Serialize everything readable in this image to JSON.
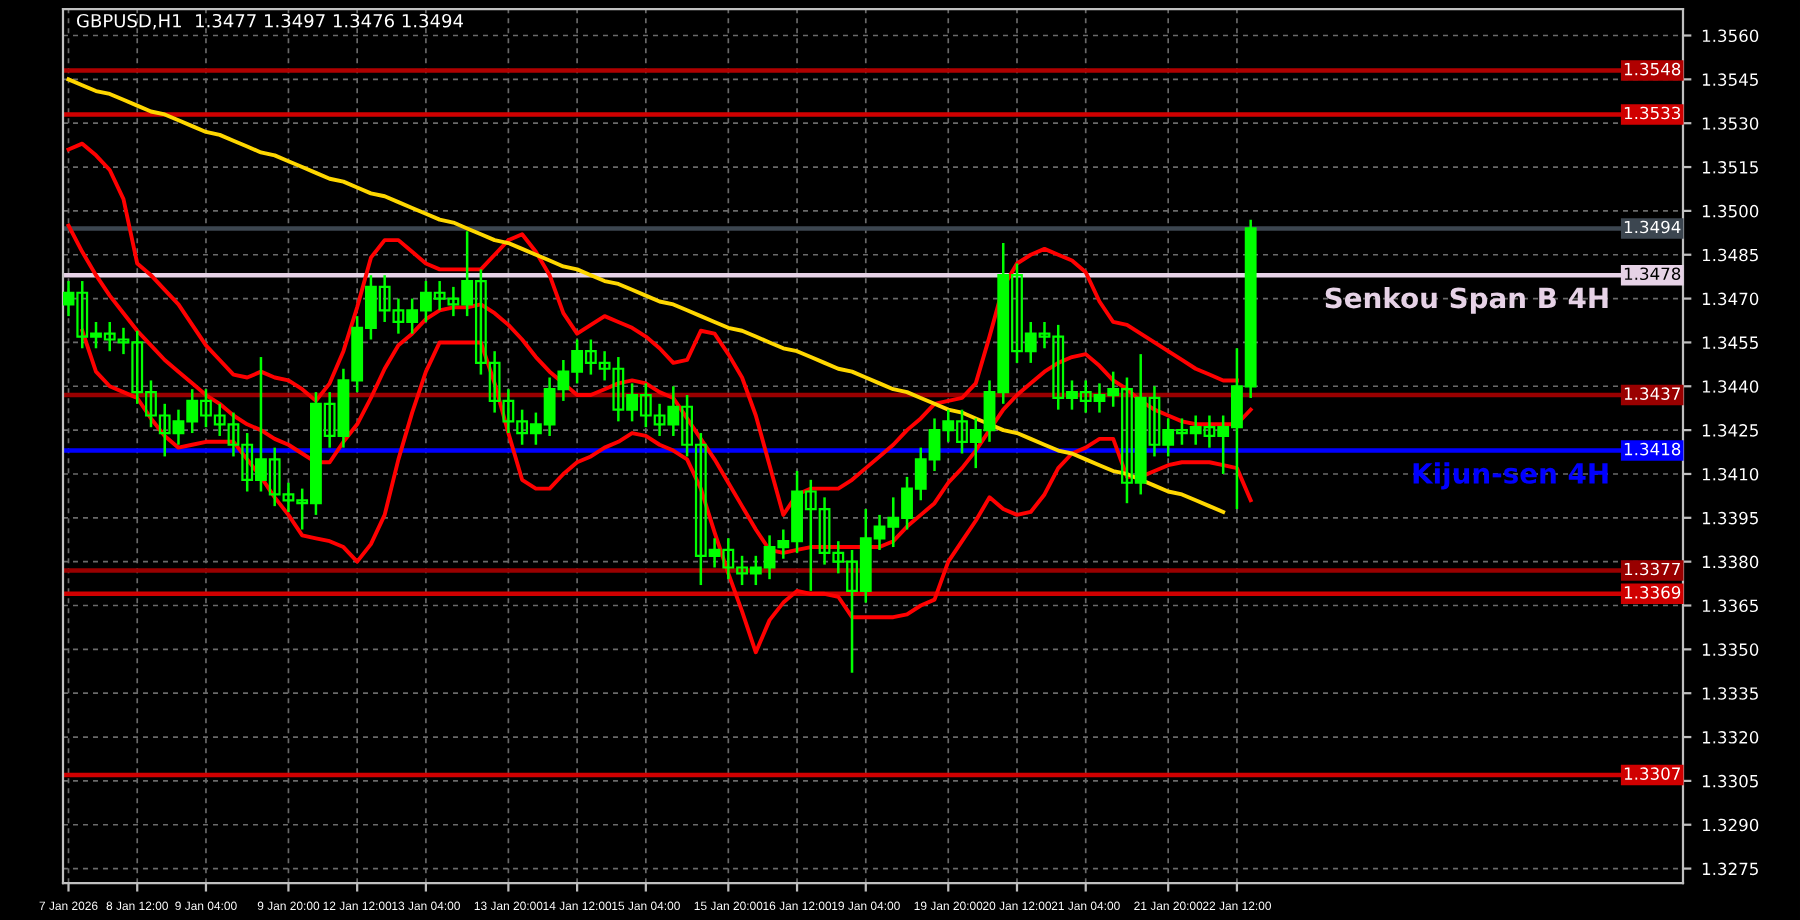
{
  "chart_data": {
    "type": "candlestick",
    "annotations": [
      "GBPUSD,H1  1.3477 1.3497 1.3476 1.3494",
      {
        "text": "1.3548",
        "y": 1.3548
      },
      {
        "text": "1.3533",
        "y": 1.3533
      },
      {
        "text": "1.3494",
        "y": 1.3494
      },
      {
        "text": "1.3478",
        "y": 1.3478
      },
      {
        "text": "1.3437",
        "y": 1.3437
      },
      {
        "text": "1.3418",
        "y": 1.3418
      },
      {
        "text": "1.3377",
        "y": 1.3377
      },
      {
        "text": "1.3369",
        "y": 1.3369
      },
      {
        "text": "1.3307",
        "y": 1.3307
      }
    ],
    "categories": [
      "7 Jan 2026",
      null,
      null,
      null,
      null,
      "8 Jan 12:00",
      null,
      null,
      null,
      null,
      "9 Jan 04:00",
      null,
      null,
      null,
      null,
      null,
      "9 Jan 20:00",
      null,
      null,
      null,
      null,
      "12 Jan 12:00",
      null,
      null,
      null,
      null,
      "13 Jan 04:00",
      null,
      null,
      null,
      null,
      null,
      "13 Jan 20:00",
      null,
      null,
      null,
      null,
      "14 Jan 12:00",
      null,
      null,
      null,
      null,
      "15 Jan 04:00",
      null,
      null,
      null,
      null,
      null,
      "15 Jan 20:00",
      null,
      null,
      null,
      null,
      "16 Jan 12:00",
      null,
      null,
      null,
      null,
      "19 Jan 04:00",
      null,
      null,
      null,
      null,
      null,
      "19 Jan 20:00",
      null,
      null,
      null,
      null,
      "20 Jan 12:00",
      null,
      null,
      null,
      null,
      "21 Jan 04:00",
      null,
      null,
      null,
      null,
      null,
      "21 Jan 20:00",
      null,
      null,
      null,
      null,
      "22 Jan 12:00",
      null
    ],
    "ylim": [
      1.327,
      1.3569
    ],
    "yticks": [
      {
        "value": 1.356,
        "label": "1.3560"
      },
      {
        "value": 1.3545,
        "label": "1.3545"
      },
      {
        "value": 1.353,
        "label": "1.3530"
      },
      {
        "value": 1.3515,
        "label": "1.3515"
      },
      {
        "value": 1.35,
        "label": "1.3500"
      },
      {
        "value": 1.3485,
        "label": "1.3485"
      },
      {
        "value": 1.347,
        "label": "1.3470"
      },
      {
        "value": 1.3455,
        "label": "1.3455"
      },
      {
        "value": 1.344,
        "label": "1.3440"
      },
      {
        "value": 1.3425,
        "label": "1.3425"
      },
      {
        "value": 1.341,
        "label": "1.3410"
      },
      {
        "value": 1.3395,
        "label": "1.3395"
      },
      {
        "value": 1.338,
        "label": "1.3380"
      },
      {
        "value": 1.3365,
        "label": "1.3365"
      },
      {
        "value": 1.335,
        "label": "1.3350"
      },
      {
        "value": 1.3335,
        "label": "1.3335"
      },
      {
        "value": 1.332,
        "label": "1.3320"
      },
      {
        "value": 1.3305,
        "label": "1.3305"
      },
      {
        "value": 1.329,
        "label": "1.3290"
      },
      {
        "value": 1.3275,
        "label": "1.3275"
      }
    ],
    "grid": true,
    "ref_lines": [
      {
        "axis": "y",
        "value": 1.3548,
        "color": "#b00000"
      },
      {
        "axis": "y",
        "value": 1.3533,
        "color": "#d00000"
      },
      {
        "axis": "y",
        "value": 1.3494,
        "color": "#3c4650"
      },
      {
        "axis": "y",
        "value": 1.3478,
        "color": "#e6d2e6",
        "label": "Senkou Span B 4H"
      },
      {
        "axis": "y",
        "value": 1.3437,
        "color": "#990000"
      },
      {
        "axis": "y",
        "value": 1.3418,
        "color": "#0000ff",
        "label": "Kijun-sen 4H"
      },
      {
        "axis": "y",
        "value": 1.3377,
        "color": "#990000"
      },
      {
        "axis": "y",
        "value": 1.3369,
        "color": "#d00000"
      },
      {
        "axis": "y",
        "value": 1.3307,
        "color": "#d00000"
      }
    ],
    "series": [
      {
        "type": "line",
        "color": "#ff0000",
        "values": [
          1.3521,
          1.3523,
          1.3519,
          1.3514,
          1.3504,
          1.3482,
          1.3478,
          1.3473,
          1.3468,
          1.3461,
          1.3454,
          1.3449,
          1.3444,
          1.3443,
          1.3445,
          1.3443,
          1.3442,
          1.3439,
          1.3435,
          1.3441,
          1.3452,
          1.3467,
          1.3484,
          1.349,
          1.349,
          1.3486,
          1.3482,
          1.348,
          1.348,
          1.348,
          1.348,
          1.3485,
          1.349,
          1.3492,
          1.3486,
          1.3478,
          1.3465,
          1.3458,
          1.3461,
          1.3464,
          1.3462,
          1.346,
          1.3457,
          1.3453,
          1.3448,
          1.3449,
          1.3459,
          1.3458,
          1.3451,
          1.3443,
          1.343,
          1.3413,
          1.3396,
          1.3403,
          1.3405,
          1.3405,
          1.3405,
          1.3408,
          1.3412,
          1.3416,
          1.342,
          1.3425,
          1.3429,
          1.3434,
          1.3435,
          1.3436,
          1.3441,
          1.3457,
          1.3474,
          1.3482,
          1.3485,
          1.3487,
          1.3485,
          1.3483,
          1.3479,
          1.3469,
          1.3462,
          1.3461,
          1.3458,
          1.3455,
          1.3452,
          1.3449,
          1.3446,
          1.3444,
          1.3442,
          1.3442,
          null
        ]
      },
      {
        "type": "line",
        "color": "#ff0000",
        "values": [
          1.3495,
          1.3486,
          1.3478,
          1.3471,
          1.3465,
          1.3459,
          1.3454,
          1.3449,
          1.3445,
          1.3441,
          1.3437,
          1.3434,
          1.343,
          1.3427,
          1.3425,
          1.3422,
          1.342,
          1.3417,
          1.3414,
          1.3414,
          1.3421,
          1.3427,
          1.3436,
          1.3446,
          1.3454,
          1.3458,
          1.3463,
          1.3466,
          1.3467,
          1.3467,
          1.3468,
          1.3465,
          1.3461,
          1.3456,
          1.345,
          1.3445,
          1.3441,
          1.3437,
          1.3437,
          1.3439,
          1.3441,
          1.3442,
          1.3441,
          1.3438,
          1.3436,
          1.3429,
          1.3422,
          1.3415,
          1.3407,
          1.3399,
          1.3391,
          1.3384,
          1.3383,
          1.3384,
          1.3385,
          1.3385,
          1.3385,
          1.3385,
          1.3385,
          1.3385,
          1.3387,
          1.3392,
          1.3396,
          1.34,
          1.3407,
          1.3412,
          1.3418,
          1.3425,
          1.3432,
          1.3437,
          1.3441,
          1.3445,
          1.3448,
          1.345,
          1.3451,
          1.3447,
          1.3442,
          1.3439,
          1.3435,
          1.3432,
          1.343,
          1.3428,
          1.3427,
          1.3427,
          1.3427,
          1.3427,
          1.3432
        ]
      },
      {
        "type": "line",
        "color": "#ff0000",
        "values": [
          null,
          1.3459,
          1.3445,
          1.344,
          1.3438,
          1.3436,
          1.3429,
          1.3423,
          1.3419,
          1.342,
          1.3421,
          1.3421,
          1.3421,
          1.3415,
          1.3409,
          1.3402,
          1.3396,
          1.3389,
          1.3388,
          1.3387,
          1.3385,
          1.338,
          1.3386,
          1.3396,
          1.3415,
          1.3431,
          1.3445,
          1.3455,
          1.3455,
          1.3455,
          1.3455,
          1.3441,
          1.3424,
          1.3408,
          1.3405,
          1.3405,
          1.341,
          1.3414,
          1.3416,
          1.3419,
          1.3421,
          1.3424,
          1.3423,
          1.342,
          1.3418,
          1.3415,
          1.3405,
          1.339,
          1.3376,
          1.3363,
          1.3349,
          1.336,
          1.3366,
          1.337,
          1.3369,
          1.3369,
          1.3368,
          1.3361,
          1.3361,
          1.3361,
          1.3361,
          1.3362,
          1.3365,
          1.3367,
          1.338,
          1.3387,
          1.3394,
          1.3402,
          1.3398,
          1.3396,
          1.3397,
          1.3403,
          1.3412,
          1.3417,
          1.3419,
          1.3422,
          1.3422,
          1.3409,
          1.3409,
          1.3411,
          1.3413,
          1.3414,
          1.3414,
          1.3414,
          1.3413,
          1.3412,
          1.3401
        ]
      },
      {
        "type": "line",
        "color": "#ffd700",
        "values": [
          1.3545,
          1.3543,
          1.3541,
          1.354,
          1.3538,
          1.3536,
          1.3534,
          1.3533,
          1.3531,
          1.3529,
          1.3527,
          1.3526,
          1.3524,
          1.3522,
          1.352,
          1.3519,
          1.3517,
          1.3515,
          1.3513,
          1.3511,
          1.351,
          1.3508,
          1.3506,
          1.3505,
          1.3503,
          1.3501,
          1.3499,
          1.3497,
          1.3496,
          1.3494,
          1.3492,
          1.349,
          1.3489,
          1.3487,
          1.3485,
          1.3483,
          1.3481,
          1.348,
          1.3478,
          1.3476,
          1.3475,
          1.3473,
          1.3471,
          1.3469,
          1.3468,
          1.3466,
          1.3464,
          1.3462,
          1.346,
          1.3459,
          1.3457,
          1.3455,
          1.3453,
          1.3452,
          1.345,
          1.3448,
          1.3446,
          1.3445,
          1.3443,
          1.3441,
          1.3439,
          1.3438,
          1.3436,
          1.3434,
          1.3432,
          1.3431,
          1.3429,
          1.3427,
          1.3425,
          1.3424,
          1.3422,
          1.342,
          1.3418,
          1.3417,
          1.3415,
          1.3413,
          1.3411,
          1.341,
          1.3408,
          1.3406,
          1.3404,
          1.3403,
          1.3401,
          1.3399,
          1.3397,
          null,
          null
        ]
      },
      {
        "color": "#00ff00",
        "ohlc": [
          [
            1.3468,
            1.3476,
            1.3464,
            1.3472
          ],
          [
            1.3472,
            1.3476,
            1.3453,
            1.3457
          ],
          [
            1.3457,
            1.3462,
            1.3453,
            1.3458
          ],
          [
            1.3458,
            1.3462,
            1.3452,
            1.3456
          ],
          [
            1.3456,
            1.346,
            1.3451,
            1.3455
          ],
          [
            1.3455,
            1.3459,
            1.3434,
            1.3438
          ],
          [
            1.3438,
            1.3442,
            1.3426,
            1.343
          ],
          [
            1.343,
            1.3434,
            1.3416,
            1.3424
          ],
          [
            1.3424,
            1.3432,
            1.342,
            1.3428
          ],
          [
            1.3428,
            1.3439,
            1.3424,
            1.3435
          ],
          [
            1.3435,
            1.3439,
            1.3426,
            1.343
          ],
          [
            1.343,
            1.3434,
            1.3423,
            1.3427
          ],
          [
            1.3427,
            1.3431,
            1.3416,
            1.342
          ],
          [
            1.342,
            1.3424,
            1.3404,
            1.3408
          ],
          [
            1.3408,
            1.345,
            1.3404,
            1.3415
          ],
          [
            1.3415,
            1.3419,
            1.3399,
            1.3403
          ],
          [
            1.3403,
            1.3407,
            1.3397,
            1.3401
          ],
          [
            1.3401,
            1.3405,
            1.3391,
            1.34
          ],
          [
            1.34,
            1.3438,
            1.3396,
            1.3434
          ],
          [
            1.3434,
            1.3438,
            1.3419,
            1.3423
          ],
          [
            1.3423,
            1.3446,
            1.3419,
            1.3442
          ],
          [
            1.3442,
            1.3464,
            1.3438,
            1.346
          ],
          [
            1.346,
            1.3478,
            1.3456,
            1.3474
          ],
          [
            1.3474,
            1.3478,
            1.3462,
            1.3466
          ],
          [
            1.3466,
            1.347,
            1.3458,
            1.3462
          ],
          [
            1.3462,
            1.347,
            1.3458,
            1.3466
          ],
          [
            1.3466,
            1.3476,
            1.3462,
            1.3472
          ],
          [
            1.3472,
            1.3476,
            1.3466,
            1.347
          ],
          [
            1.347,
            1.3474,
            1.3464,
            1.3468
          ],
          [
            1.3468,
            1.3493,
            1.3464,
            1.3476
          ],
          [
            1.3476,
            1.348,
            1.3444,
            1.3448
          ],
          [
            1.3448,
            1.3452,
            1.3431,
            1.3435
          ],
          [
            1.3435,
            1.3439,
            1.3424,
            1.3428
          ],
          [
            1.3428,
            1.3432,
            1.342,
            1.3424
          ],
          [
            1.3424,
            1.3431,
            1.342,
            1.3427
          ],
          [
            1.3427,
            1.3443,
            1.3423,
            1.3439
          ],
          [
            1.3439,
            1.3449,
            1.3435,
            1.3445
          ],
          [
            1.3445,
            1.3456,
            1.3441,
            1.3452
          ],
          [
            1.3452,
            1.3456,
            1.3444,
            1.3448
          ],
          [
            1.3448,
            1.3452,
            1.3442,
            1.3446
          ],
          [
            1.3446,
            1.345,
            1.3428,
            1.3432
          ],
          [
            1.3432,
            1.3441,
            1.3428,
            1.3437
          ],
          [
            1.3437,
            1.3441,
            1.3426,
            1.343
          ],
          [
            1.343,
            1.3434,
            1.3423,
            1.3427
          ],
          [
            1.3427,
            1.344,
            1.3423,
            1.3433
          ],
          [
            1.3433,
            1.3437,
            1.3416,
            1.342
          ],
          [
            1.342,
            1.3424,
            1.3372,
            1.3382
          ],
          [
            1.3382,
            1.3388,
            1.3378,
            1.3384
          ],
          [
            1.3384,
            1.3388,
            1.3374,
            1.3378
          ],
          [
            1.3378,
            1.3382,
            1.3372,
            1.3376
          ],
          [
            1.3376,
            1.3382,
            1.3372,
            1.3378
          ],
          [
            1.3378,
            1.3389,
            1.3374,
            1.3385
          ],
          [
            1.3385,
            1.3391,
            1.3381,
            1.3387
          ],
          [
            1.3387,
            1.3411,
            1.3383,
            1.3404
          ],
          [
            1.3404,
            1.3408,
            1.337,
            1.3398
          ],
          [
            1.3398,
            1.3402,
            1.3379,
            1.3383
          ],
          [
            1.3383,
            1.3387,
            1.3376,
            1.338
          ],
          [
            1.338,
            1.3384,
            1.3342,
            1.337
          ],
          [
            1.337,
            1.3398,
            1.3366,
            1.3388
          ],
          [
            1.3388,
            1.3396,
            1.3384,
            1.3392
          ],
          [
            1.3392,
            1.3402,
            1.3385,
            1.3395
          ],
          [
            1.3395,
            1.3409,
            1.3391,
            1.3405
          ],
          [
            1.3405,
            1.3419,
            1.3401,
            1.3415
          ],
          [
            1.3415,
            1.3429,
            1.3411,
            1.3425
          ],
          [
            1.3425,
            1.3432,
            1.3421,
            1.3428
          ],
          [
            1.3428,
            1.3432,
            1.3417,
            1.3421
          ],
          [
            1.3421,
            1.3429,
            1.3412,
            1.3425
          ],
          [
            1.3425,
            1.3442,
            1.3421,
            1.3438
          ],
          [
            1.3438,
            1.3489,
            1.3434,
            1.3478
          ],
          [
            1.3478,
            1.3482,
            1.3448,
            1.3452
          ],
          [
            1.3452,
            1.3462,
            1.3448,
            1.3458
          ],
          [
            1.3458,
            1.3462,
            1.3453,
            1.3457
          ],
          [
            1.3457,
            1.3461,
            1.3432,
            1.3436
          ],
          [
            1.3436,
            1.3442,
            1.3432,
            1.3438
          ],
          [
            1.3438,
            1.3442,
            1.3431,
            1.3435
          ],
          [
            1.3435,
            1.3441,
            1.3431,
            1.3437
          ],
          [
            1.3437,
            1.3445,
            1.3433,
            1.3439
          ],
          [
            1.3439,
            1.3443,
            1.34,
            1.3407
          ],
          [
            1.3407,
            1.3451,
            1.3403,
            1.3436
          ],
          [
            1.3436,
            1.344,
            1.3416,
            1.342
          ],
          [
            1.342,
            1.3429,
            1.3416,
            1.3425
          ],
          [
            1.3425,
            1.3429,
            1.342,
            1.3424
          ],
          [
            1.3424,
            1.343,
            1.342,
            1.3426
          ],
          [
            1.3426,
            1.343,
            1.3419,
            1.3423
          ],
          [
            1.3423,
            1.343,
            1.341,
            1.3426
          ],
          [
            1.3426,
            1.3453,
            1.3398,
            1.344
          ],
          [
            1.344,
            1.3497,
            1.3436,
            1.3494
          ]
        ]
      }
    ]
  }
}
